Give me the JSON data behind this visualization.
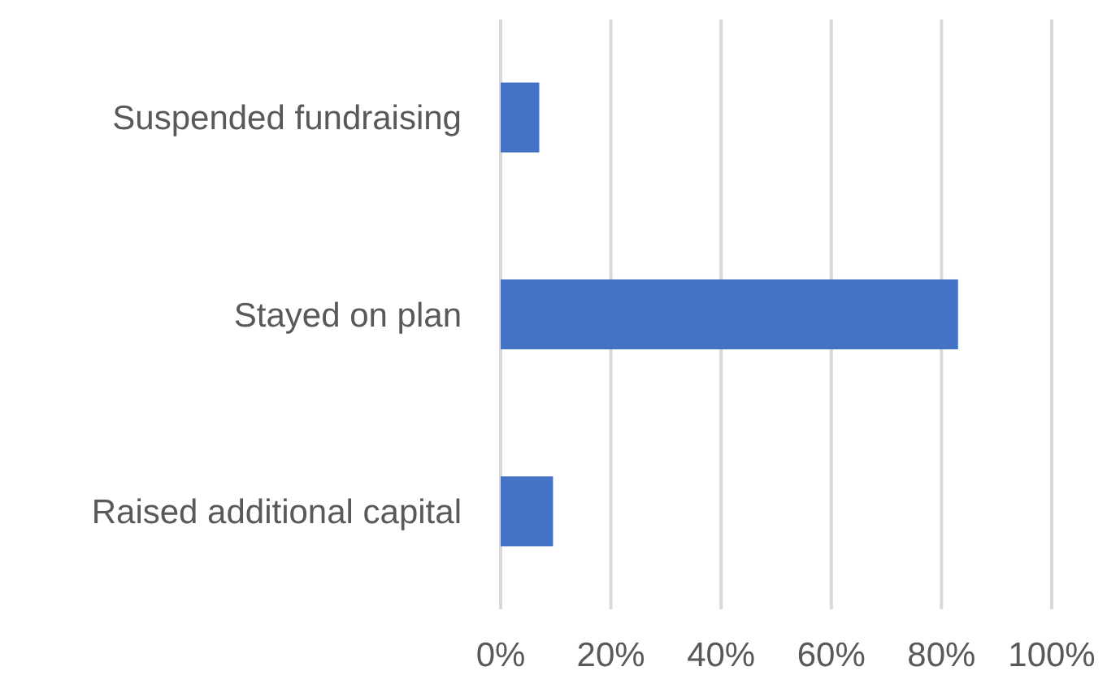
{
  "chart_data": {
    "type": "bar",
    "orientation": "horizontal",
    "categories": [
      "Suspended fundraising",
      "Stayed on plan",
      "Raised additional capital"
    ],
    "values": [
      7,
      83,
      9.5
    ],
    "color": "#4472c4",
    "xlim": [
      0,
      100
    ],
    "xticks": [
      {
        "value": 0,
        "label": "0%"
      },
      {
        "value": 20,
        "label": "20%"
      },
      {
        "value": 40,
        "label": "40%"
      },
      {
        "value": 60,
        "label": "60%"
      },
      {
        "value": 80,
        "label": "80%"
      },
      {
        "value": 100,
        "label": "100%"
      }
    ],
    "grid": "x"
  }
}
